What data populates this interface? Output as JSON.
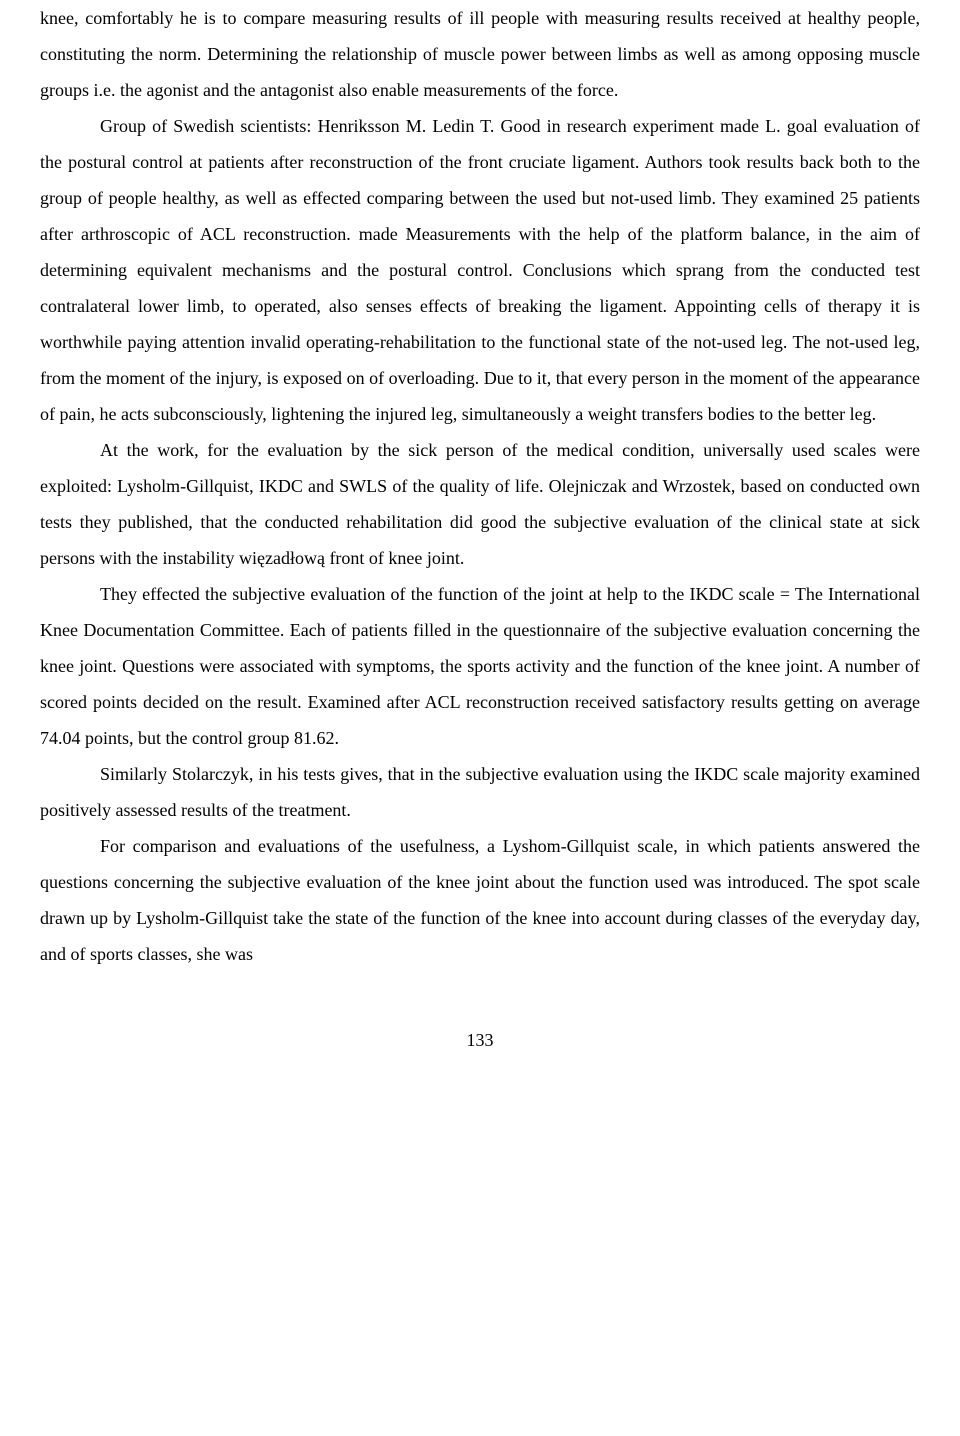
{
  "paragraphs": [
    {
      "text": "knee, comfortably he is to compare measuring results of ill people with measuring results received at healthy people, constituting the norm. Determining the relationship of muscle power between limbs as well as among opposing muscle groups i.e. the agonist and the antagonist also enable measurements of the force.",
      "indent": false
    },
    {
      "text": "Group of Swedish scientists: Henriksson M. Ledin T. Good in research experiment made L. goal evaluation of the postural control at patients after reconstruction of the front cruciate ligament. Authors took results back both to the group of people healthy, as well as effected comparing between the used but not-used limb. They examined 25 patients after arthroscopic of ACL reconstruction. made Measurements with the help of the platform balance, in the aim of determining equivalent mechanisms and the postural control. Conclusions which sprang from the conducted test contralateral lower limb, to operated, also senses effects of breaking the ligament. Appointing cells of therapy it is worthwhile paying attention invalid operating-rehabilitation to the functional state of the not-used leg. The not-used leg, from the moment of the injury, is exposed on of overloading. Due to it, that every person in the moment of the appearance of pain, he acts subconsciously, lightening the injured leg, simultaneously a weight transfers bodies to the better leg.",
      "indent": true
    },
    {
      "text": "At the work, for the evaluation by the sick person of the medical condition, universally used scales were exploited: Lysholm-Gillquist, IKDC and SWLS of the quality of life. Olejniczak and Wrzostek, based on conducted own tests they published, that the conducted rehabilitation did good the subjective evaluation of the clinical state at sick persons with the instability więzadłową front of knee joint.",
      "indent": true
    },
    {
      "text": "They effected the subjective evaluation of the function of the joint at help to the IKDC scale = The International Knee Documentation Committee. Each of patients filled in the questionnaire of the subjective evaluation concerning the knee joint. Questions were associated with symptoms, the sports activity and the function of the knee joint. A number of scored points decided on the result. Examined after ACL reconstruction received satisfactory results getting on average 74.04 points, but the control group 81.62.",
      "indent": true
    },
    {
      "text": "Similarly Stolarczyk, in his tests gives, that in the subjective evaluation using the IKDC scale majority examined positively assessed results of the treatment.",
      "indent": true
    },
    {
      "text": "For comparison and evaluations of the usefulness, a Lyshom-Gillquist scale, in which patients answered the questions concerning the subjective evaluation of the knee joint about the function used was introduced. The spot scale drawn up by Lysholm-Gillquist take the state of the function of the knee into account during classes of the everyday day, and of sports classes, she was",
      "indent": true
    }
  ],
  "pageNumber": "133"
}
